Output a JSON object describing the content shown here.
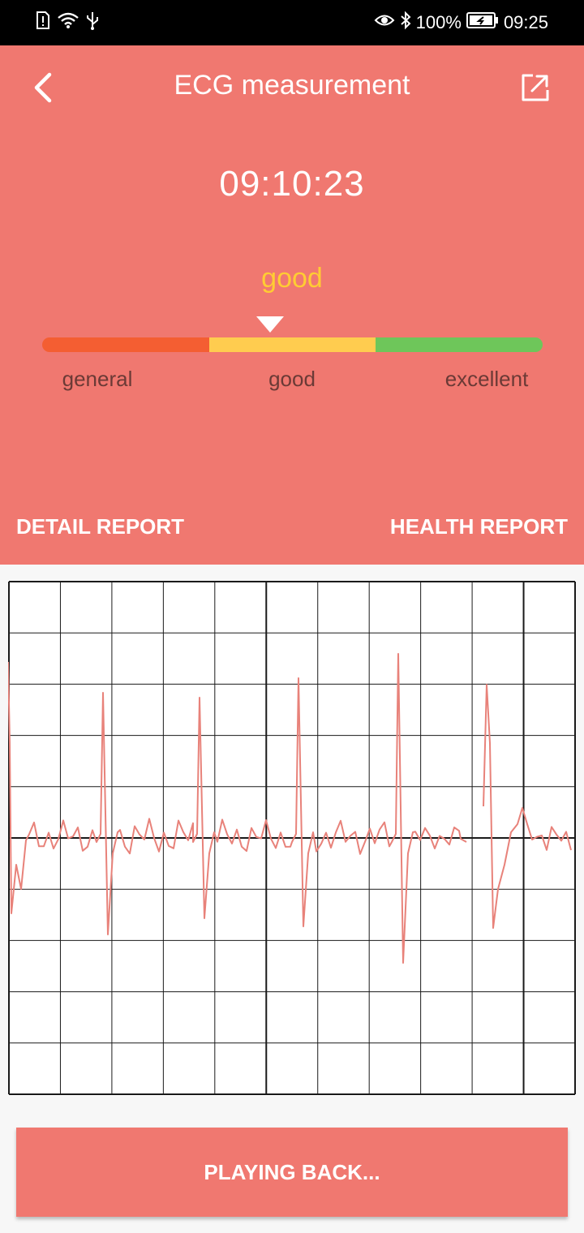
{
  "status_bar": {
    "left_icons": [
      "sim-alert-icon",
      "wifi-icon",
      "usb-icon"
    ],
    "right_icons": [
      "eye-icon",
      "bluetooth-icon",
      "battery-icon"
    ],
    "battery": "100%",
    "time": "09:25"
  },
  "header": {
    "title": "ECG measurement",
    "time": "09:10:23",
    "rating": "good",
    "rating_color": "#ffcc33",
    "background": "#f07870",
    "scale": {
      "levels": [
        {
          "label": "general",
          "color": "#f45e32"
        },
        {
          "label": "good",
          "color": "#ffcc4f"
        },
        {
          "label": "excellent",
          "color": "#6ec65a"
        }
      ],
      "marker_position": 0.455
    }
  },
  "links": {
    "detail_report": "DETAIL REPORT",
    "health_report": "HEALTH REPORT"
  },
  "ecg": {
    "trace_color": "#e8827a",
    "grid_color": "#1a1a1a"
  },
  "button": {
    "label": "PLAYING BACK..."
  }
}
